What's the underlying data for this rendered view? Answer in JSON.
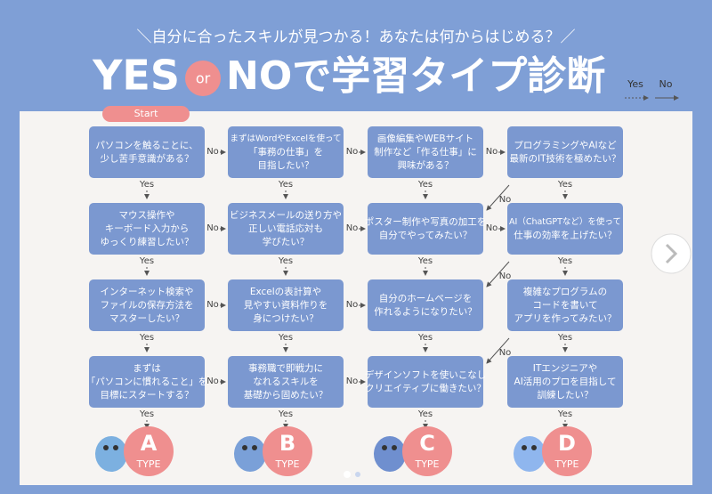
{
  "header": {
    "subtitle": "＼自分に合ったスキルが見つかる！あなたは何からはじめる？／",
    "title_left": "YES",
    "title_or": "or",
    "title_right": "NOで学習タイプ診断"
  },
  "legend": {
    "yes": "Yes",
    "no": "No"
  },
  "start": "Start",
  "labels": {
    "yes": "Yes",
    "no": "No"
  },
  "columns": [
    {
      "nodes": [
        [
          "パソコンを触ることに、",
          "少し苦手意識がある？"
        ],
        [
          "マウス操作や",
          "キーボード入力から",
          "ゆっくり練習したい？"
        ],
        [
          "インターネット検索や",
          "ファイルの保存方法を",
          "マスターしたい？"
        ],
        [
          "まずは",
          "「パソコンに慣れること」を",
          "目標にスタートする？"
        ]
      ],
      "result": {
        "letter": "A",
        "type": "TYPE"
      }
    },
    {
      "nodes": [
        [
          "まずはWordやExcelを使って",
          "「事務の仕事」を",
          "目指したい？"
        ],
        [
          "ビジネスメールの送り方や",
          "正しい電話応対も",
          "学びたい？"
        ],
        [
          "Excelの表計算や",
          "見やすい資料作りを",
          "身につけたい？"
        ],
        [
          "事務職で即戦力に",
          "なれるスキルを",
          "基礎から固めたい？"
        ]
      ],
      "result": {
        "letter": "B",
        "type": "TYPE"
      }
    },
    {
      "nodes": [
        [
          "画像編集やWEBサイト",
          "制作など「作る仕事」に",
          "興味がある？"
        ],
        [
          "ポスター制作や写真の加工を",
          "自分でやってみたい？"
        ],
        [
          "自分のホームページを",
          "作れるようになりたい？"
        ],
        [
          "デザインソフトを使いこなし",
          "クリエイティブに働きたい？"
        ]
      ],
      "result": {
        "letter": "C",
        "type": "TYPE"
      }
    },
    {
      "nodes": [
        [
          "プログラミングやAIなど",
          "最新のIT技術を極めたい？"
        ],
        [
          "AI（ChatGPTなど）を使って",
          "仕事の効率を上げたい？"
        ],
        [
          "複雑なプログラムの",
          "コードを書いて",
          "アプリを作ってみたい？"
        ],
        [
          "ITエンジニアや",
          "AI活用のプロを目指して",
          "訓練したい？"
        ]
      ],
      "result": {
        "letter": "D",
        "type": "TYPE"
      }
    }
  ]
}
